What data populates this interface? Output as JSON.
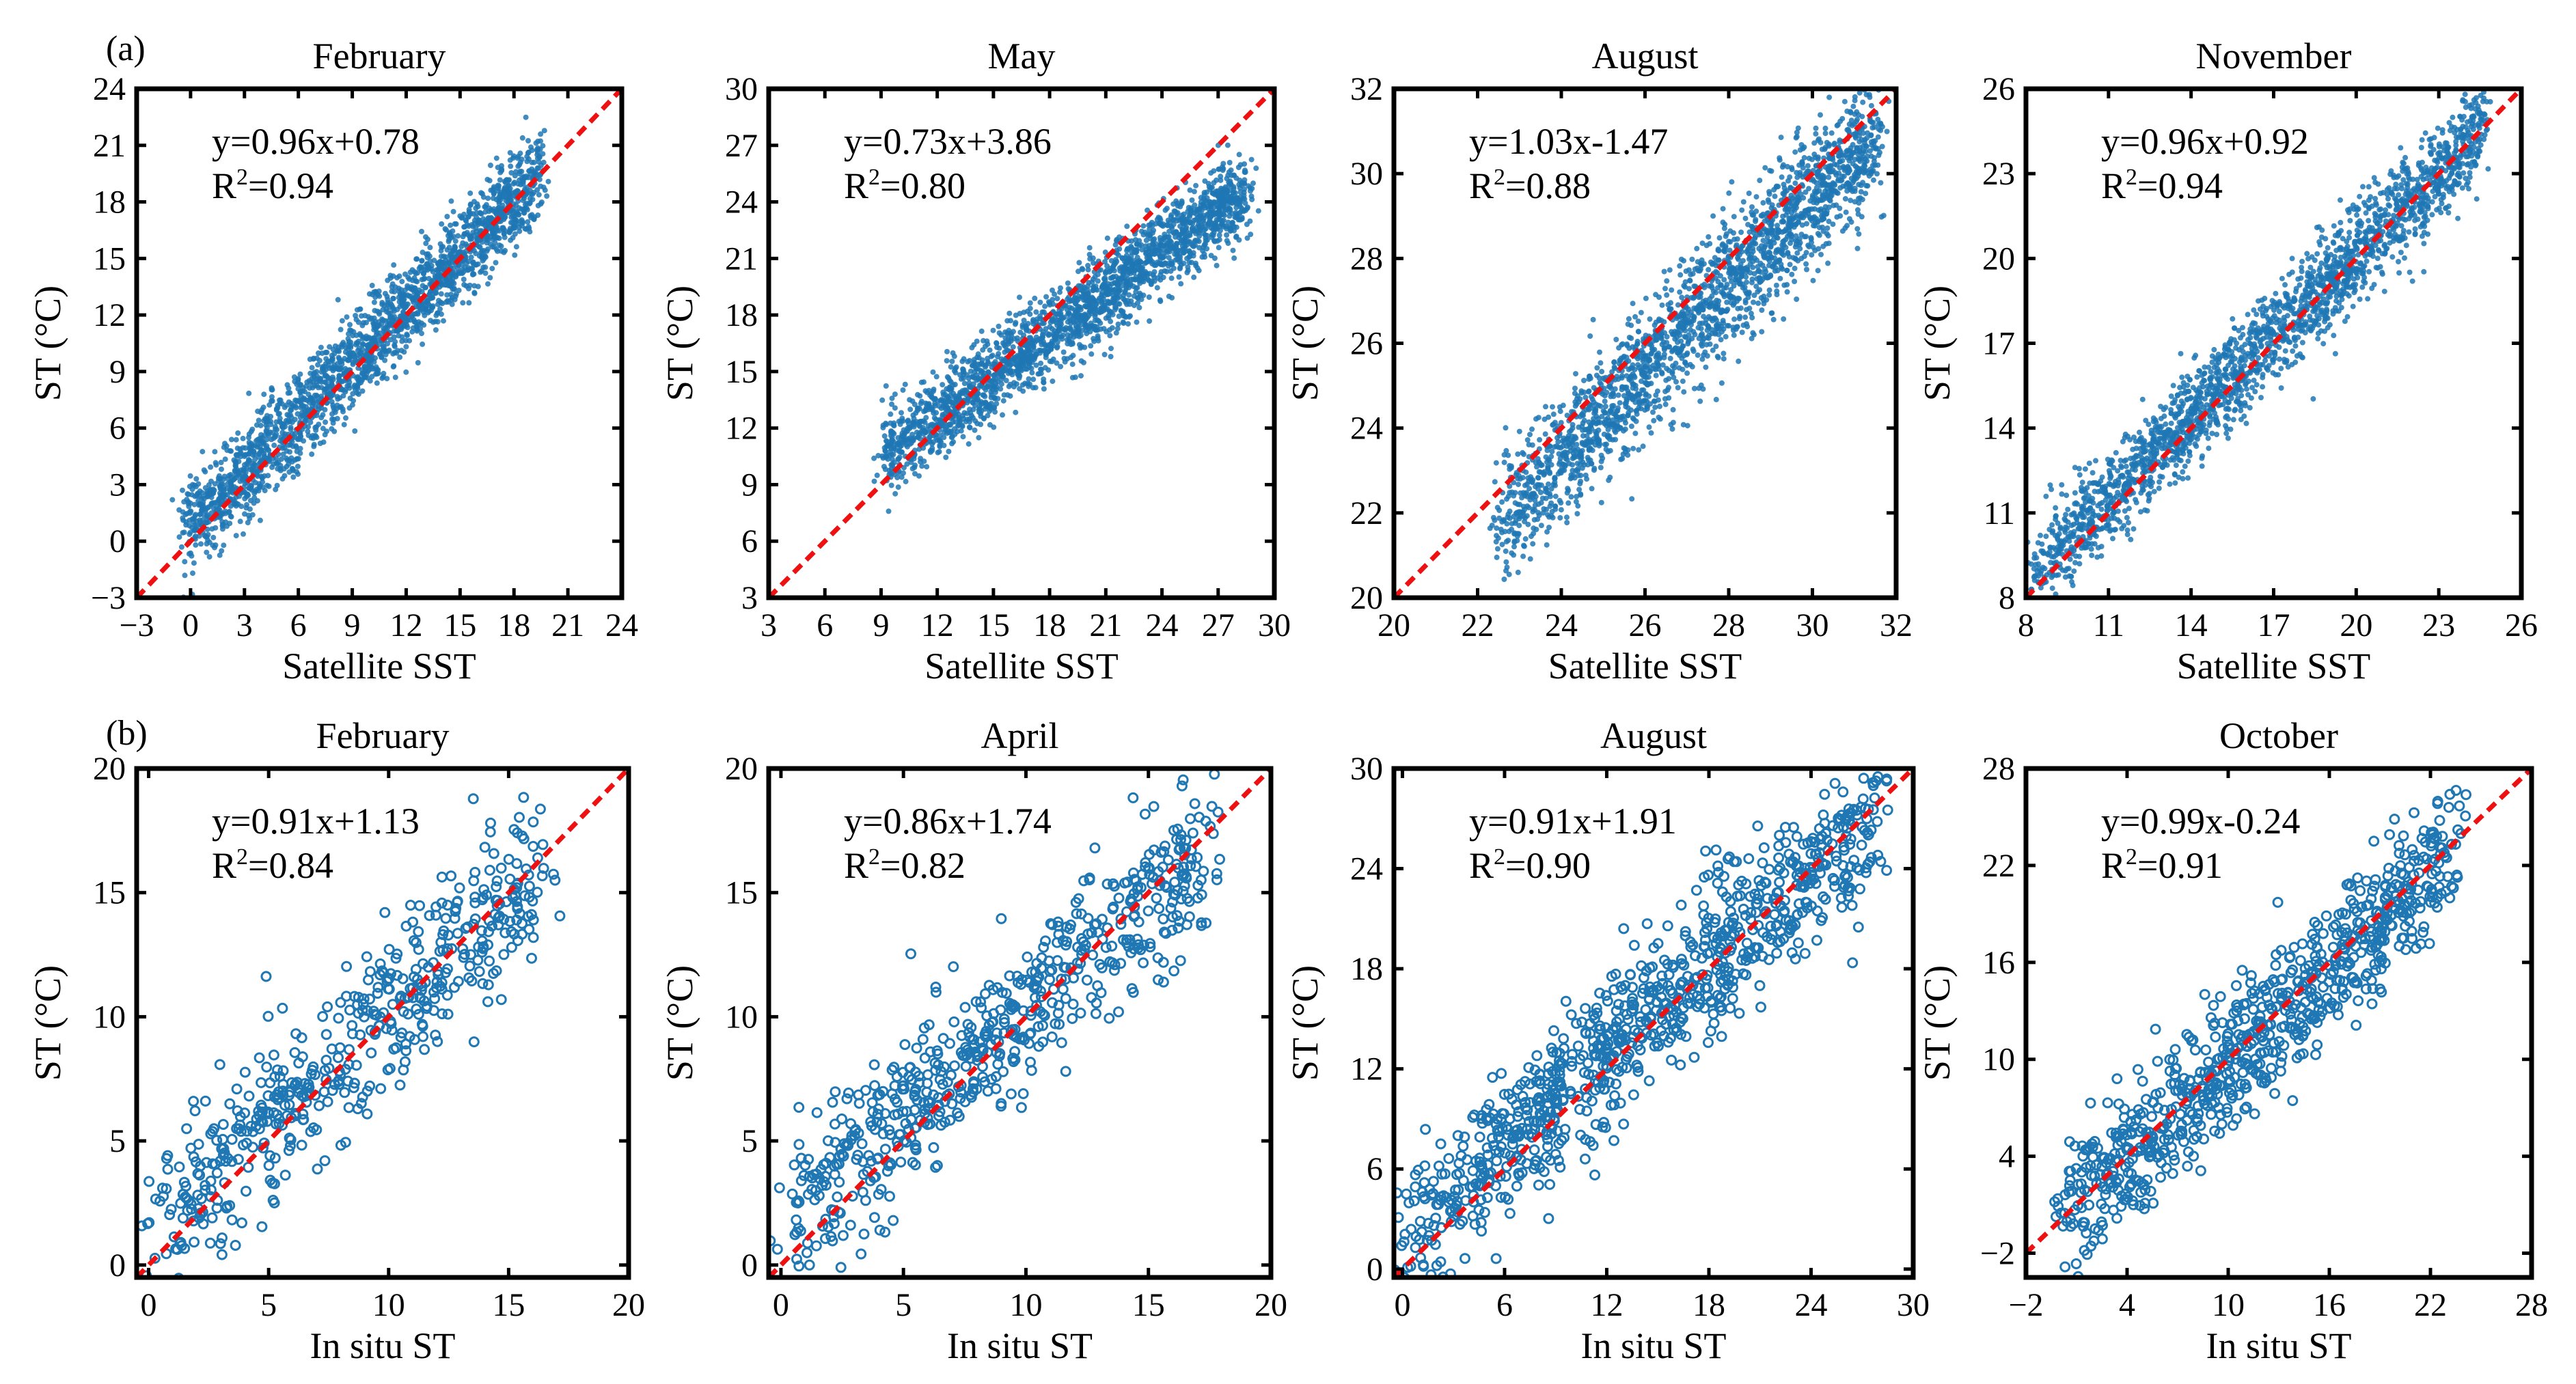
{
  "figure": {
    "rows": [
      {
        "label": "(a)",
        "xlabel": "Satellite SST",
        "ylabel": "ST (°C)",
        "marker": "filled-dot"
      },
      {
        "label": "(b)",
        "xlabel": "In situ ST",
        "ylabel": "ST (°C)",
        "marker": "open-circle"
      }
    ],
    "reference_line": {
      "style": "dashed",
      "color": "#ee1111",
      "meaning": "1:1"
    },
    "marker_color": "#1f77b4"
  },
  "chart_data": [
    {
      "type": "scatter",
      "row": 0,
      "title": "February",
      "xlabel": "Satellite SST",
      "ylabel": "ST (°C)",
      "xlim": [
        -3,
        24
      ],
      "ylim": [
        -3,
        24
      ],
      "xticks": [
        -3,
        0,
        3,
        6,
        9,
        12,
        15,
        18,
        21,
        24
      ],
      "yticks": [
        -3,
        0,
        3,
        6,
        9,
        12,
        15,
        18,
        21,
        24
      ],
      "equation": "y=0.96x+0.78",
      "r2_label": "R",
      "r2_value": "=0.94",
      "fit": {
        "slope": 0.96,
        "intercept": 0.78
      },
      "cloud": {
        "xmin": -0.5,
        "xmax": 19.5,
        "spread": 1.2,
        "count": 2200,
        "seed": 11
      }
    },
    {
      "type": "scatter",
      "row": 0,
      "title": "May",
      "xlabel": "Satellite SST",
      "ylabel": "ST (°C)",
      "xlim": [
        3,
        30
      ],
      "ylim": [
        3,
        30
      ],
      "xticks": [
        3,
        6,
        9,
        12,
        15,
        18,
        21,
        24,
        27,
        30
      ],
      "yticks": [
        3,
        6,
        9,
        12,
        15,
        18,
        21,
        24,
        27,
        30
      ],
      "equation": "y=0.73x+3.86",
      "r2_label": "R",
      "r2_value": "=0.80",
      "fit": {
        "slope": 0.73,
        "intercept": 3.86
      },
      "cloud": {
        "xmin": 9,
        "xmax": 28.5,
        "spread": 1.1,
        "count": 2200,
        "seed": 23
      }
    },
    {
      "type": "scatter",
      "row": 0,
      "title": "August",
      "xlabel": "Satellite SST",
      "ylabel": "ST (°C)",
      "xlim": [
        20,
        32
      ],
      "ylim": [
        20,
        32
      ],
      "xticks": [
        20,
        22,
        24,
        26,
        28,
        30,
        32
      ],
      "yticks": [
        20,
        22,
        24,
        26,
        28,
        30,
        32
      ],
      "equation": "y=1.03x-1.47",
      "r2_label": "R",
      "r2_value": "=0.88",
      "fit": {
        "slope": 1.03,
        "intercept": -1.47
      },
      "cloud": {
        "xmin": 22.5,
        "xmax": 31.5,
        "spread": 0.75,
        "count": 2200,
        "seed": 37
      }
    },
    {
      "type": "scatter",
      "row": 0,
      "title": "November",
      "xlabel": "Satellite SST",
      "ylabel": "ST (°C)",
      "xlim": [
        8,
        26
      ],
      "ylim": [
        8,
        26
      ],
      "xticks": [
        8,
        11,
        14,
        17,
        20,
        23,
        26
      ],
      "yticks": [
        8,
        11,
        14,
        17,
        20,
        23,
        26
      ],
      "equation": "y=0.96x+0.92",
      "r2_label": "R",
      "r2_value": "=0.94",
      "fit": {
        "slope": 0.96,
        "intercept": 0.92
      },
      "cloud": {
        "xmin": 8.2,
        "xmax": 24.7,
        "spread": 0.85,
        "count": 2200,
        "seed": 41
      }
    },
    {
      "type": "scatter",
      "row": 1,
      "title": "February",
      "xlabel": "In situ ST",
      "ylabel": "ST (°C)",
      "xlim": [
        -0.5,
        20
      ],
      "ylim": [
        -0.5,
        20
      ],
      "xticks": [
        0,
        5,
        10,
        15,
        20
      ],
      "yticks": [
        0,
        5,
        10,
        15,
        20
      ],
      "equation": "y=0.91x+1.13",
      "r2_label": "R",
      "r2_value": "=0.84",
      "fit": {
        "slope": 0.91,
        "intercept": 1.13
      },
      "cloud": {
        "xmin": 0,
        "xmax": 16.5,
        "spread": 1.6,
        "count": 520,
        "seed": 53
      }
    },
    {
      "type": "scatter",
      "row": 1,
      "title": "April",
      "xlabel": "In situ ST",
      "ylabel": "ST (°C)",
      "xlim": [
        -0.5,
        20
      ],
      "ylim": [
        -0.5,
        20
      ],
      "xticks": [
        0,
        5,
        10,
        15,
        20
      ],
      "yticks": [
        0,
        5,
        10,
        15,
        20
      ],
      "equation": "y=0.86x+1.74",
      "r2_label": "R",
      "r2_value": "=0.82",
      "fit": {
        "slope": 0.86,
        "intercept": 1.74
      },
      "cloud": {
        "xmin": 0,
        "xmax": 17.5,
        "spread": 1.5,
        "count": 620,
        "seed": 67
      }
    },
    {
      "type": "scatter",
      "row": 1,
      "title": "August",
      "xlabel": "In situ ST",
      "ylabel": "ST (°C)",
      "xlim": [
        -0.5,
        30
      ],
      "ylim": [
        -0.5,
        30
      ],
      "xticks": [
        0,
        6,
        12,
        18,
        24,
        30
      ],
      "yticks": [
        0,
        6,
        12,
        18,
        24,
        30
      ],
      "equation": "y=0.91x+1.91",
      "r2_label": "R",
      "r2_value": "=0.90",
      "fit": {
        "slope": 0.91,
        "intercept": 1.91
      },
      "cloud": {
        "xmin": 0,
        "xmax": 28,
        "spread": 2.3,
        "count": 900,
        "seed": 79
      }
    },
    {
      "type": "scatter",
      "row": 1,
      "title": "October",
      "xlabel": "In situ ST",
      "ylabel": "ST (°C)",
      "xlim": [
        -2,
        28
      ],
      "ylim": [
        -3.5,
        28
      ],
      "xticks": [
        -2,
        4,
        10,
        16,
        22,
        28
      ],
      "yticks": [
        -2,
        4,
        10,
        16,
        22,
        28
      ],
      "equation": "y=0.99x-0.24",
      "r2_label": "R",
      "r2_value": "=0.91",
      "fit": {
        "slope": 0.99,
        "intercept": -0.24
      },
      "cloud": {
        "xmin": 0,
        "xmax": 23.5,
        "spread": 2.1,
        "count": 800,
        "seed": 97
      }
    }
  ]
}
